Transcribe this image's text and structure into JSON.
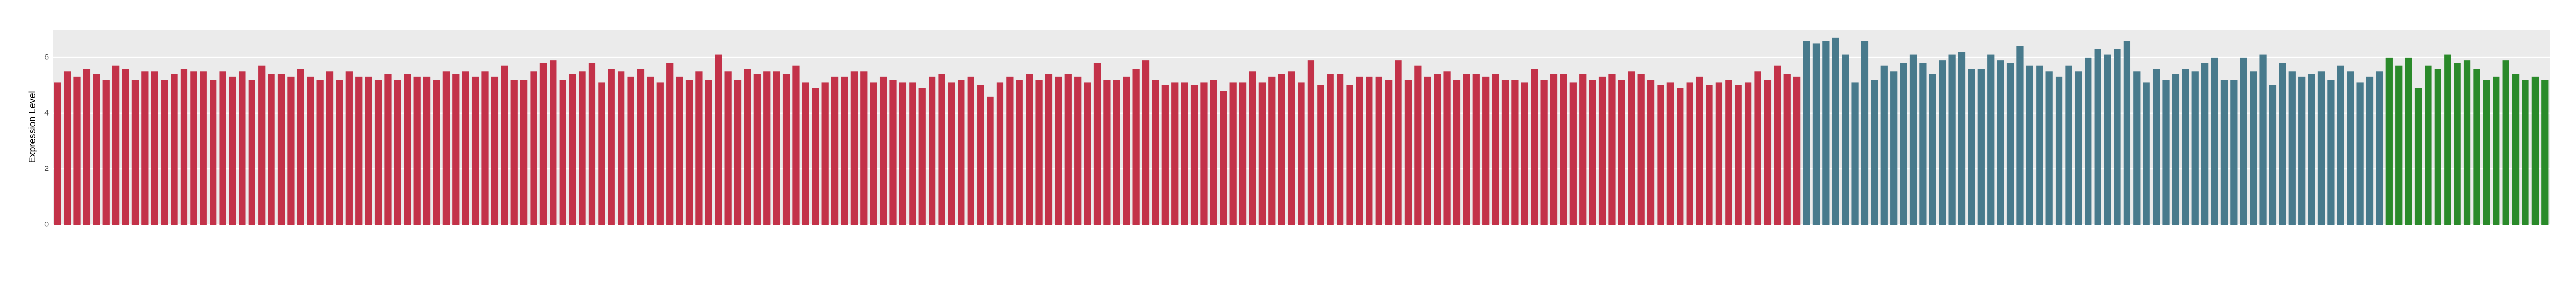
{
  "chart_data": {
    "type": "bar",
    "y_label": "Expression Level",
    "ylim": [
      0,
      7
    ],
    "yticks": [
      0,
      2,
      4,
      6
    ],
    "grid": true,
    "categories": [
      null,
      null,
      null,
      null,
      null,
      null,
      null,
      null,
      null,
      null,
      null,
      null,
      null,
      null,
      null,
      null,
      null,
      null,
      null,
      null,
      null,
      null,
      null,
      null,
      null,
      null,
      null,
      null,
      null,
      null,
      null,
      null,
      null,
      null,
      null,
      null,
      null,
      null,
      null,
      null,
      null,
      null,
      null,
      null,
      null,
      null,
      null,
      null,
      null,
      null,
      null,
      null,
      null,
      null,
      null,
      null,
      null,
      null,
      null,
      null,
      null,
      null,
      null,
      null,
      null,
      null,
      null,
      null,
      null,
      null,
      null,
      null,
      null,
      null,
      null,
      null,
      null,
      null,
      null,
      null,
      null,
      null,
      null,
      null,
      null,
      null,
      null,
      null,
      null,
      null,
      null,
      null,
      null,
      null,
      null,
      null,
      null,
      null,
      null,
      null,
      null,
      null,
      null,
      null,
      null,
      null,
      null,
      null,
      null,
      null,
      null,
      null,
      null,
      null,
      null,
      null,
      null,
      null,
      null,
      null,
      null,
      null,
      null,
      null,
      null,
      null,
      null,
      null,
      null,
      null,
      null,
      null,
      null,
      null,
      null,
      null,
      null,
      null,
      null,
      null,
      null,
      null,
      null,
      null,
      null,
      null,
      null,
      null,
      null,
      null,
      null,
      null,
      null,
      null,
      null,
      null,
      null,
      null,
      null,
      null,
      null,
      null,
      null,
      null,
      null,
      null,
      null,
      null,
      null,
      null,
      null,
      null,
      null,
      null,
      null,
      null,
      null,
      null,
      null,
      null,
      null,
      null,
      null,
      null,
      null,
      null,
      null,
      null,
      null,
      null,
      null,
      null,
      null,
      null,
      null,
      null,
      null,
      null,
      null,
      null,
      null,
      null,
      null,
      null,
      null,
      null,
      null,
      null,
      null,
      null,
      null,
      null,
      null,
      null,
      null,
      null,
      null,
      null,
      null,
      null,
      null,
      null,
      null,
      null,
      null,
      null,
      null,
      null,
      null,
      null,
      null,
      null,
      null,
      null,
      null,
      null,
      null,
      null,
      null,
      null,
      null,
      null,
      null,
      null,
      null,
      null,
      null,
      null,
      null,
      null,
      null,
      null,
      null,
      null,
      null,
      null,
      null
    ],
    "values": [
      5.1,
      5.5,
      5.3,
      5.6,
      5.4,
      5.2,
      5.7,
      5.6,
      5.2,
      5.5,
      5.5,
      5.2,
      5.4,
      5.6,
      5.5,
      5.5,
      5.2,
      5.5,
      5.3,
      5.5,
      5.2,
      5.7,
      5.4,
      5.4,
      5.3,
      5.6,
      5.3,
      5.2,
      5.5,
      5.2,
      5.5,
      5.3,
      5.3,
      5.2,
      5.4,
      5.2,
      5.4,
      5.3,
      5.3,
      5.2,
      5.5,
      5.4,
      5.5,
      5.3,
      5.5,
      5.3,
      5.7,
      5.2,
      5.2,
      5.5,
      5.8,
      5.9,
      5.2,
      5.4,
      5.5,
      5.8,
      5.1,
      5.6,
      5.5,
      5.3,
      5.6,
      5.3,
      5.1,
      5.8,
      5.3,
      5.2,
      5.5,
      5.2,
      6.1,
      5.5,
      5.2,
      5.6,
      5.4,
      5.5,
      5.5,
      5.4,
      5.7,
      5.1,
      4.9,
      5.1,
      5.3,
      5.3,
      5.5,
      5.5,
      5.1,
      5.3,
      5.2,
      5.1,
      5.1,
      4.9,
      5.3,
      5.4,
      5.1,
      5.2,
      5.3,
      5.0,
      4.6,
      5.1,
      5.3,
      5.2,
      5.4,
      5.2,
      5.4,
      5.3,
      5.4,
      5.3,
      5.1,
      5.8,
      5.2,
      5.2,
      5.3,
      5.6,
      5.9,
      5.2,
      5.0,
      5.1,
      5.1,
      5.0,
      5.1,
      5.2,
      4.8,
      5.1,
      5.1,
      5.5,
      5.1,
      5.3,
      5.4,
      5.5,
      5.1,
      5.9,
      5.0,
      5.4,
      5.4,
      5.0,
      5.3,
      5.3,
      5.3,
      5.2,
      5.9,
      5.2,
      5.7,
      5.3,
      5.4,
      5.5,
      5.2,
      5.4,
      5.4,
      5.3,
      5.4,
      5.2,
      5.2,
      5.1,
      5.6,
      5.2,
      5.4,
      5.4,
      5.1,
      5.4,
      5.2,
      5.3,
      5.4,
      5.2,
      5.5,
      5.4,
      5.2,
      5.0,
      5.1,
      4.9,
      5.1,
      5.3,
      5.0,
      5.1,
      5.2,
      5.0,
      5.1,
      5.5,
      5.2,
      5.7,
      5.4,
      5.3,
      6.6,
      6.5,
      6.6,
      6.7,
      6.1,
      5.1,
      6.6,
      5.2,
      5.7,
      5.5,
      5.8,
      6.1,
      5.8,
      5.4,
      5.9,
      6.1,
      6.2,
      5.6,
      5.6,
      6.1,
      5.9,
      5.8,
      6.4,
      5.7,
      5.7,
      5.5,
      5.3,
      5.7,
      5.5,
      6.0,
      6.3,
      6.1,
      6.3,
      6.6,
      5.5,
      5.1,
      5.6,
      5.2,
      5.4,
      5.6,
      5.5,
      5.8,
      6.0,
      5.2,
      5.2,
      6.0,
      5.5,
      6.1,
      5.0,
      5.8,
      5.5,
      5.3,
      5.4,
      5.5,
      5.2,
      5.7,
      5.5,
      5.1,
      5.3,
      5.5,
      6.0,
      5.7,
      6.0,
      4.9,
      5.7,
      5.6,
      6.1,
      5.8,
      5.9,
      5.6,
      5.2,
      5.3,
      5.9,
      5.4,
      5.2,
      5.3,
      5.2
    ],
    "colors": [
      "#c33249",
      "#c33249",
      "#c33249",
      "#c33249",
      "#c33249",
      "#c33249",
      "#c33249",
      "#c33249",
      "#c33249",
      "#c33249",
      "#c33249",
      "#c33249",
      "#c33249",
      "#c33249",
      "#c33249",
      "#c33249",
      "#c33249",
      "#c33249",
      "#c33249",
      "#c33249",
      "#c33249",
      "#c33249",
      "#c33249",
      "#c33249",
      "#c33249",
      "#c33249",
      "#c33249",
      "#c33249",
      "#c33249",
      "#c33249",
      "#c33249",
      "#c33249",
      "#c33249",
      "#c33249",
      "#c33249",
      "#c33249",
      "#c33249",
      "#c33249",
      "#c33249",
      "#c33249",
      "#c33249",
      "#c33249",
      "#c33249",
      "#c33249",
      "#c33249",
      "#c33249",
      "#c33249",
      "#c33249",
      "#c33249",
      "#c33249",
      "#c33249",
      "#c33249",
      "#c33249",
      "#c33249",
      "#c33249",
      "#c33249",
      "#c33249",
      "#c33249",
      "#c33249",
      "#c33249",
      "#c33249",
      "#c33249",
      "#c33249",
      "#c33249",
      "#c33249",
      "#c33249",
      "#c33249",
      "#c33249",
      "#c33249",
      "#c33249",
      "#c33249",
      "#c33249",
      "#c33249",
      "#c33249",
      "#c33249",
      "#c33249",
      "#c33249",
      "#c33249",
      "#c33249",
      "#c33249",
      "#c33249",
      "#c33249",
      "#c33249",
      "#c33249",
      "#c33249",
      "#c33249",
      "#c33249",
      "#c33249",
      "#c33249",
      "#c33249",
      "#c33249",
      "#c33249",
      "#c33249",
      "#c33249",
      "#c33249",
      "#c33249",
      "#c33249",
      "#c33249",
      "#c33249",
      "#c33249",
      "#c33249",
      "#c33249",
      "#c33249",
      "#c33249",
      "#c33249",
      "#c33249",
      "#c33249",
      "#c33249",
      "#c33249",
      "#c33249",
      "#c33249",
      "#c33249",
      "#c33249",
      "#c33249",
      "#c33249",
      "#c33249",
      "#c33249",
      "#c33249",
      "#c33249",
      "#c33249",
      "#c33249",
      "#c33249",
      "#c33249",
      "#c33249",
      "#c33249",
      "#c33249",
      "#c33249",
      "#c33249",
      "#c33249",
      "#c33249",
      "#c33249",
      "#c33249",
      "#c33249",
      "#c33249",
      "#c33249",
      "#c33249",
      "#c33249",
      "#c33249",
      "#c33249",
      "#c33249",
      "#c33249",
      "#c33249",
      "#c33249",
      "#c33249",
      "#c33249",
      "#c33249",
      "#c33249",
      "#c33249",
      "#c33249",
      "#c33249",
      "#c33249",
      "#c33249",
      "#c33249",
      "#c33249",
      "#c33249",
      "#c33249",
      "#c33249",
      "#c33249",
      "#c33249",
      "#c33249",
      "#c33249",
      "#c33249",
      "#c33249",
      "#c33249",
      "#c33249",
      "#c33249",
      "#c33249",
      "#c33249",
      "#c33249",
      "#c33249",
      "#c33249",
      "#c33249",
      "#c33249",
      "#c33249",
      "#c33249",
      "#c33249",
      "#c33249",
      "#c33249",
      "#c33249",
      "#c33249",
      "#487a8c",
      "#487a8c",
      "#487a8c",
      "#487a8c",
      "#487a8c",
      "#487a8c",
      "#487a8c",
      "#487a8c",
      "#487a8c",
      "#487a8c",
      "#487a8c",
      "#487a8c",
      "#487a8c",
      "#487a8c",
      "#487a8c",
      "#487a8c",
      "#487a8c",
      "#487a8c",
      "#487a8c",
      "#487a8c",
      "#487a8c",
      "#487a8c",
      "#487a8c",
      "#487a8c",
      "#487a8c",
      "#487a8c",
      "#487a8c",
      "#487a8c",
      "#487a8c",
      "#487a8c",
      "#487a8c",
      "#487a8c",
      "#487a8c",
      "#487a8c",
      "#487a8c",
      "#487a8c",
      "#487a8c",
      "#487a8c",
      "#487a8c",
      "#487a8c",
      "#487a8c",
      "#487a8c",
      "#487a8c",
      "#487a8c",
      "#487a8c",
      "#487a8c",
      "#487a8c",
      "#487a8c",
      "#487a8c",
      "#487a8c",
      "#487a8c",
      "#487a8c",
      "#487a8c",
      "#487a8c",
      "#487a8c",
      "#487a8c",
      "#487a8c",
      "#487a8c",
      "#487a8c",
      "#487a8c",
      "#2a8a2a",
      "#2a8a2a",
      "#2a8a2a",
      "#2a8a2a",
      "#2a8a2a",
      "#2a8a2a",
      "#2a8a2a",
      "#2a8a2a",
      "#2a8a2a",
      "#2a8a2a",
      "#2a8a2a",
      "#2a8a2a",
      "#2a8a2a",
      "#2a8a2a",
      "#2a8a2a",
      "#2a8a2a",
      "#2a8a2a"
    ]
  }
}
